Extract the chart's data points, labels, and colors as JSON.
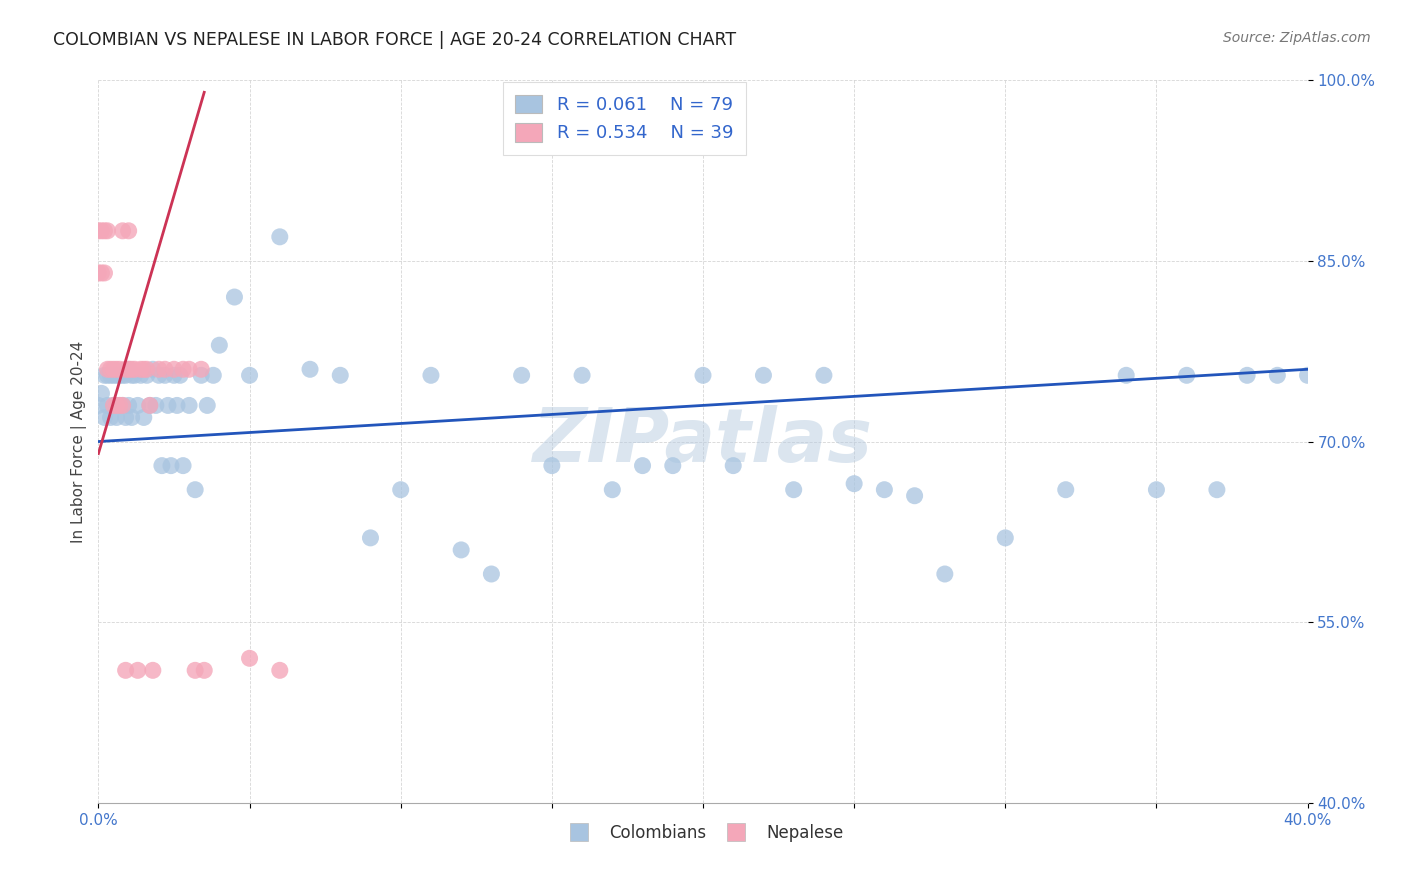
{
  "title": "COLOMBIAN VS NEPALESE IN LABOR FORCE | AGE 20-24 CORRELATION CHART",
  "source": "Source: ZipAtlas.com",
  "ylabel": "In Labor Force | Age 20-24",
  "xlim": [
    0.0,
    0.4
  ],
  "ylim": [
    0.4,
    1.0
  ],
  "xticks": [
    0.0,
    0.05,
    0.1,
    0.15,
    0.2,
    0.25,
    0.3,
    0.35,
    0.4
  ],
  "xticklabels": [
    "0.0%",
    "",
    "",
    "",
    "",
    "",
    "",
    "",
    "40.0%"
  ],
  "yticks": [
    0.4,
    0.55,
    0.7,
    0.85,
    1.0
  ],
  "yticklabels": [
    "40.0%",
    "55.0%",
    "70.0%",
    "85.0%",
    "100.0%"
  ],
  "watermark": "ZIPatlas",
  "blue_R": "0.061",
  "blue_N": "79",
  "pink_R": "0.534",
  "pink_N": "39",
  "blue_color": "#a8c4e0",
  "pink_color": "#f4a7b9",
  "blue_line_color": "#2255bb",
  "pink_line_color": "#cc3355",
  "legend_blue_label": "Colombians",
  "legend_pink_label": "Nepalese",
  "blue_x": [
    0.0,
    0.001,
    0.002,
    0.002,
    0.003,
    0.003,
    0.004,
    0.004,
    0.005,
    0.005,
    0.006,
    0.006,
    0.007,
    0.007,
    0.008,
    0.008,
    0.009,
    0.009,
    0.01,
    0.01,
    0.011,
    0.011,
    0.012,
    0.013,
    0.014,
    0.015,
    0.016,
    0.017,
    0.018,
    0.019,
    0.02,
    0.021,
    0.022,
    0.023,
    0.024,
    0.025,
    0.026,
    0.027,
    0.028,
    0.03,
    0.032,
    0.034,
    0.036,
    0.038,
    0.04,
    0.045,
    0.05,
    0.06,
    0.07,
    0.08,
    0.09,
    0.1,
    0.11,
    0.12,
    0.13,
    0.14,
    0.15,
    0.16,
    0.17,
    0.18,
    0.19,
    0.2,
    0.21,
    0.22,
    0.23,
    0.24,
    0.25,
    0.26,
    0.27,
    0.28,
    0.3,
    0.32,
    0.34,
    0.35,
    0.36,
    0.37,
    0.38,
    0.39,
    0.4
  ],
  "blue_y": [
    0.73,
    0.74,
    0.755,
    0.72,
    0.755,
    0.73,
    0.755,
    0.72,
    0.755,
    0.73,
    0.755,
    0.72,
    0.755,
    0.73,
    0.755,
    0.73,
    0.755,
    0.72,
    0.76,
    0.73,
    0.755,
    0.72,
    0.755,
    0.73,
    0.755,
    0.72,
    0.755,
    0.73,
    0.76,
    0.73,
    0.755,
    0.68,
    0.755,
    0.73,
    0.68,
    0.755,
    0.73,
    0.755,
    0.68,
    0.73,
    0.66,
    0.755,
    0.73,
    0.755,
    0.78,
    0.82,
    0.755,
    0.87,
    0.76,
    0.755,
    0.62,
    0.66,
    0.755,
    0.61,
    0.59,
    0.755,
    0.68,
    0.755,
    0.66,
    0.68,
    0.68,
    0.755,
    0.68,
    0.755,
    0.66,
    0.755,
    0.665,
    0.66,
    0.655,
    0.59,
    0.62,
    0.66,
    0.755,
    0.66,
    0.755,
    0.66,
    0.755,
    0.755,
    0.755
  ],
  "pink_x": [
    0.0,
    0.0,
    0.001,
    0.001,
    0.002,
    0.002,
    0.003,
    0.003,
    0.004,
    0.005,
    0.005,
    0.006,
    0.006,
    0.007,
    0.007,
    0.008,
    0.008,
    0.009,
    0.009,
    0.01,
    0.01,
    0.011,
    0.012,
    0.013,
    0.014,
    0.015,
    0.016,
    0.017,
    0.018,
    0.02,
    0.022,
    0.025,
    0.028,
    0.03,
    0.032,
    0.034,
    0.035,
    0.05,
    0.06
  ],
  "pink_y": [
    0.875,
    0.84,
    0.84,
    0.875,
    0.84,
    0.875,
    0.76,
    0.875,
    0.76,
    0.76,
    0.73,
    0.76,
    0.73,
    0.76,
    0.73,
    0.875,
    0.73,
    0.76,
    0.51,
    0.76,
    0.875,
    0.76,
    0.76,
    0.51,
    0.76,
    0.76,
    0.76,
    0.73,
    0.51,
    0.76,
    0.76,
    0.76,
    0.76,
    0.76,
    0.51,
    0.76,
    0.51,
    0.52,
    0.51
  ],
  "blue_line_x": [
    0.0,
    0.4
  ],
  "blue_line_y": [
    0.7,
    0.76
  ],
  "pink_line_x": [
    0.0,
    0.035
  ],
  "pink_line_y": [
    0.69,
    0.99
  ]
}
